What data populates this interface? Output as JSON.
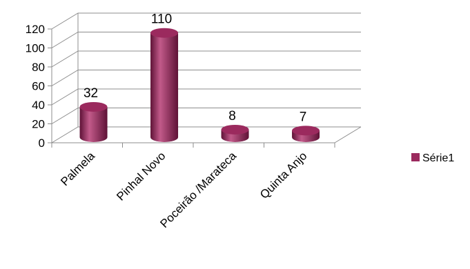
{
  "chart_data": {
    "type": "bar",
    "style": "3d-cylinder",
    "categories": [
      "Palmela",
      "Pinhal Novo",
      "Poceirão /Marateca",
      "Quinta Anjo"
    ],
    "series": [
      {
        "name": "Série1",
        "values": [
          32,
          110,
          8,
          7
        ]
      }
    ],
    "data_labels": [
      "32",
      "110",
      "8",
      "7"
    ],
    "ylim": [
      0,
      120
    ],
    "y_ticks": [
      0,
      20,
      40,
      60,
      80,
      100,
      120
    ],
    "y_tick_labels": [
      "0",
      "20",
      "40",
      "60",
      "80",
      "100",
      "120"
    ],
    "grid": true,
    "legend_position": "right",
    "colors": {
      "bar": "#9b2a5e",
      "bar_dark": "#5e1236",
      "bar_light": "#c25a8a",
      "grid": "#8c8c8c"
    }
  }
}
